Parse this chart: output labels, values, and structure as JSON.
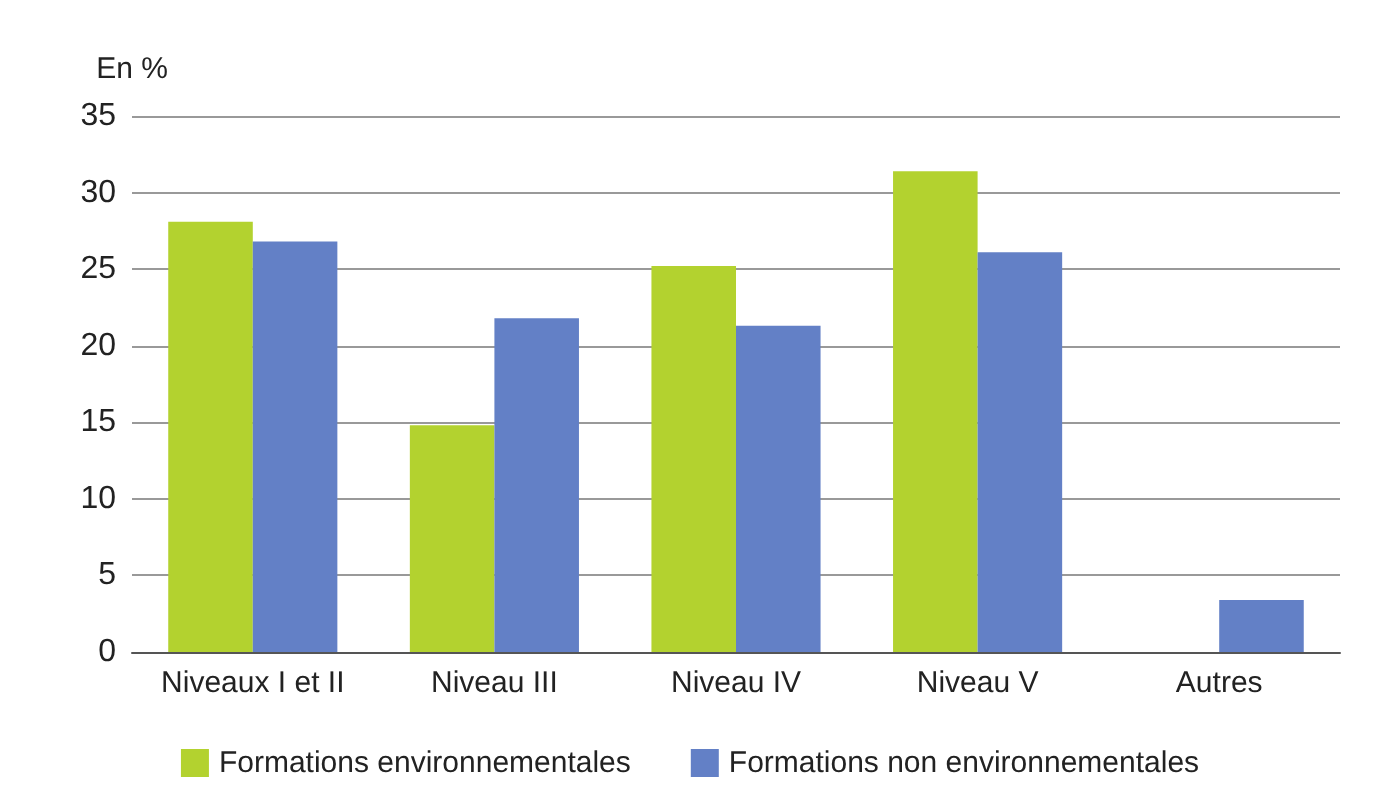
{
  "chart_data": {
    "type": "bar",
    "ylabel": "En %",
    "categories": [
      "Niveaux I et II",
      "Niveau III",
      "Niveau IV",
      "Niveau V",
      "Autres"
    ],
    "series": [
      {
        "name": "Formations environnementales",
        "color": "#b3d22f",
        "values": [
          28.1,
          14.8,
          25.2,
          31.4,
          0
        ]
      },
      {
        "name": "Formations non environnementales",
        "color": "#6380c6",
        "values": [
          26.8,
          21.8,
          21.3,
          26.1,
          3.4
        ]
      }
    ],
    "ylim": [
      0,
      35
    ],
    "yticks": [
      0,
      5,
      10,
      15,
      20,
      25,
      30,
      35
    ],
    "grid": "y",
    "legend": "bottom"
  }
}
